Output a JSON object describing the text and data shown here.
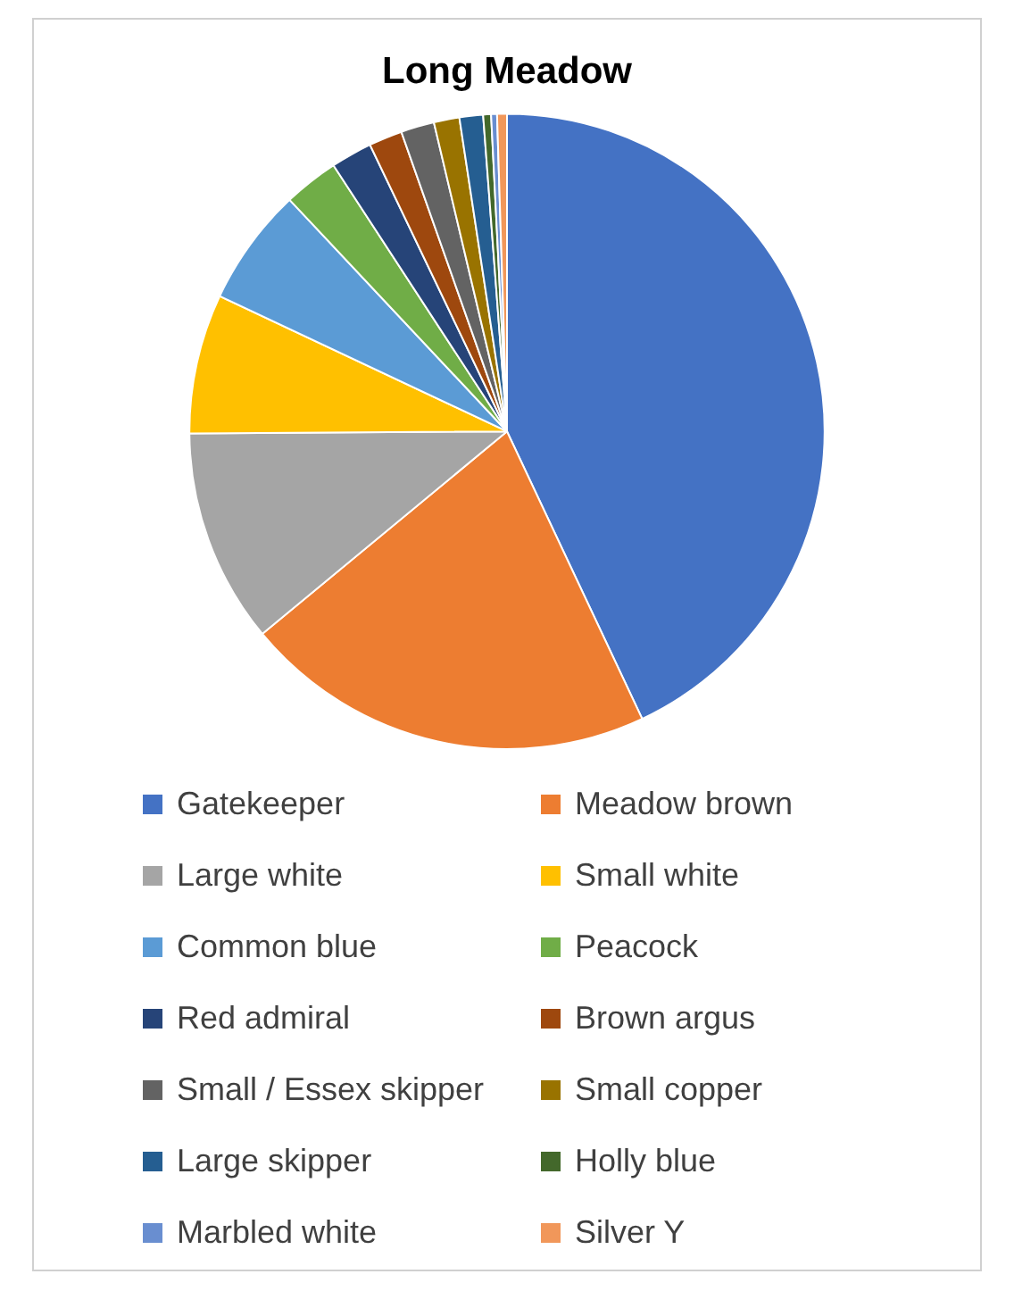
{
  "chart_data": {
    "type": "pie",
    "title": "Long Meadow",
    "categories": [
      "Gatekeeper",
      "Meadow brown",
      "Large white",
      "Small white",
      "Common blue",
      "Peacock",
      "Red admiral",
      "Brown argus",
      "Small / Essex skipper",
      "Small copper",
      "Large skipper",
      "Holly blue",
      "Marbled white",
      "Silver Y"
    ],
    "values": [
      43.0,
      21.0,
      10.9,
      7.1,
      6.0,
      2.8,
      2.1,
      1.7,
      1.7,
      1.3,
      1.2,
      0.4,
      0.3,
      0.5
    ],
    "colors": [
      "#4472c4",
      "#ed7d31",
      "#a5a5a5",
      "#ffc000",
      "#5b9bd5",
      "#70ad47",
      "#264478",
      "#9e480e",
      "#636363",
      "#997300",
      "#255e91",
      "#43682b",
      "#698ed0",
      "#f1975a"
    ],
    "legend": "bottom"
  }
}
